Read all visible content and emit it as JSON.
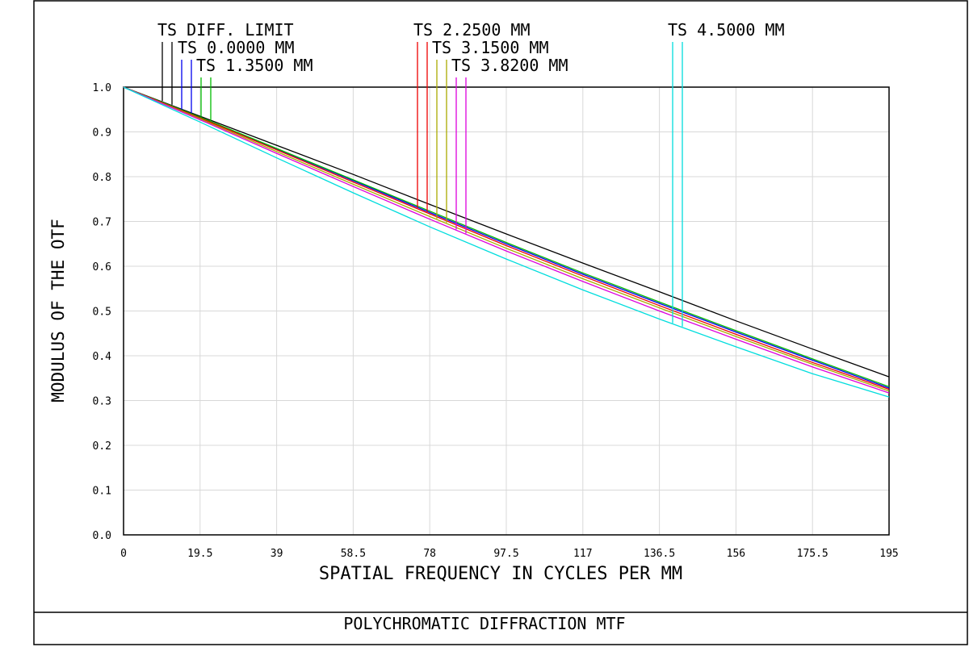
{
  "chart_data": {
    "type": "line",
    "footer": "POLYCHROMATIC DIFFRACTION MTF",
    "xlabel": "SPATIAL FREQUENCY IN CYCLES PER MM",
    "ylabel": "MODULUS OF THE OTF",
    "xlim": [
      0,
      195
    ],
    "ylim": [
      0,
      1
    ],
    "grid": true,
    "x_ticks": [
      "0",
      "19.5",
      "39",
      "58.5",
      "78",
      "97.5",
      "117",
      "136.5",
      "156",
      "175.5",
      "195"
    ],
    "y_ticks": [
      "0.0",
      "0.1",
      "0.2",
      "0.3",
      "0.4",
      "0.5",
      "0.6",
      "0.7",
      "0.8",
      "0.9",
      "1.0"
    ],
    "legend": [
      {
        "label": "TS DIFF. LIMIT"
      },
      {
        "label": "TS 0.0000 MM"
      },
      {
        "label": "TS 1.3500 MM"
      },
      {
        "label": "TS 2.2500 MM"
      },
      {
        "label": "TS 3.1500 MM"
      },
      {
        "label": "TS 3.8200 MM"
      },
      {
        "label": "TS 4.5000 MM"
      }
    ],
    "x": [
      0,
      19.5,
      39,
      58.5,
      78,
      97.5,
      117,
      136.5,
      156,
      175.5,
      195
    ],
    "series": [
      {
        "color": "#000000",
        "values": [
          1.0,
          0.935,
          0.87,
          0.805,
          0.738,
          0.672,
          0.607,
          0.543,
          0.478,
          0.415,
          0.353
        ]
      },
      {
        "color": "#0000ee",
        "values": [
          1.0,
          0.932,
          0.862,
          0.791,
          0.72,
          0.65,
          0.582,
          0.517,
          0.453,
          0.39,
          0.328
        ]
      },
      {
        "color": "#00bb00",
        "values": [
          1.0,
          0.933,
          0.863,
          0.793,
          0.723,
          0.653,
          0.585,
          0.52,
          0.456,
          0.393,
          0.331
        ]
      },
      {
        "color": "#ee0000",
        "values": [
          1.0,
          0.931,
          0.86,
          0.788,
          0.717,
          0.646,
          0.578,
          0.512,
          0.448,
          0.385,
          0.325
        ]
      },
      {
        "color": "#aaaa00",
        "values": [
          1.0,
          0.929,
          0.856,
          0.783,
          0.711,
          0.64,
          0.572,
          0.507,
          0.443,
          0.381,
          0.321
        ]
      },
      {
        "color": "#dd00dd",
        "values": [
          1.0,
          0.927,
          0.852,
          0.778,
          0.705,
          0.634,
          0.566,
          0.5,
          0.437,
          0.375,
          0.317
        ]
      },
      {
        "color": "#00dddd",
        "values": [
          1.0,
          0.922,
          0.842,
          0.764,
          0.688,
          0.616,
          0.547,
          0.482,
          0.42,
          0.36,
          0.308
        ]
      }
    ]
  }
}
